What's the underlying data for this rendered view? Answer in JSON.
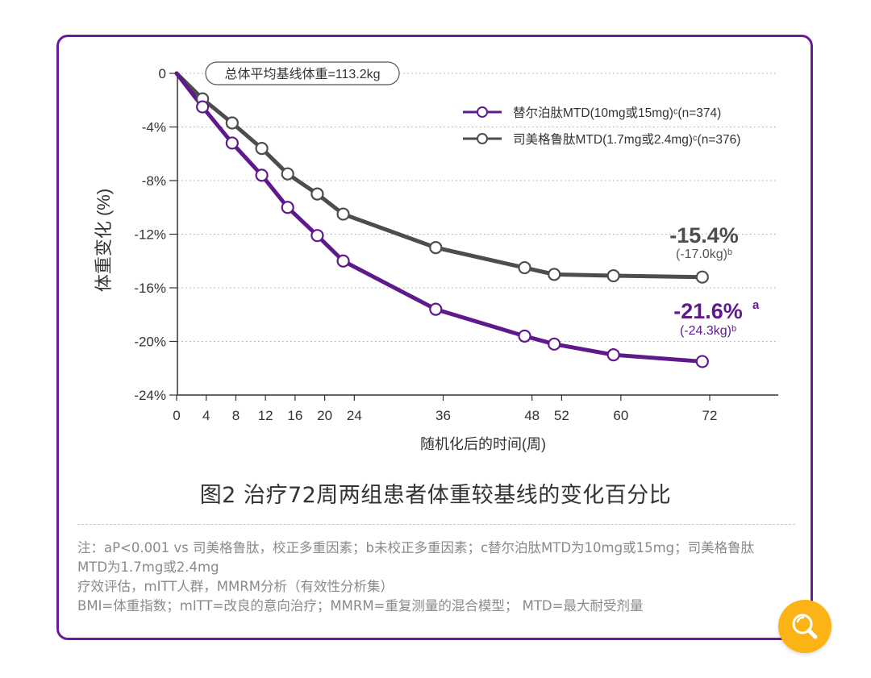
{
  "colors": {
    "border": "#6a1b9a",
    "tirzepatide": "#5e1a8c",
    "semaglutide": "#4d4d4d",
    "search_button": "#fbb316"
  },
  "chart_data": {
    "type": "line",
    "xlabel": "随机化后的时间(周)",
    "ylabel": "体重变化 (%)",
    "x_ticks": [
      0,
      4,
      8,
      12,
      16,
      20,
      24,
      36,
      48,
      52,
      60,
      72
    ],
    "y_ticks": [
      0,
      -4,
      -8,
      -12,
      -16,
      -20,
      -24
    ],
    "y_tick_labels": [
      "0",
      "-4%",
      "-8%",
      "-12%",
      "-16%",
      "-20%",
      "-24%"
    ],
    "xlim": [
      0,
      82
    ],
    "ylim": [
      -24,
      0
    ],
    "grid": "horizontal dotted",
    "legend_position": "top-right",
    "baseline_note": "总体平均基线体重=113.2kg",
    "series": [
      {
        "name": "替尔泊肽MTD(10mg或15mg)ᶜ(n=374)",
        "x": [
          0,
          3.5,
          7.5,
          11.5,
          15,
          19,
          22.5,
          35,
          47,
          51,
          59,
          71
        ],
        "values": [
          0,
          -2.5,
          -5.2,
          -7.6,
          -10.0,
          -12.1,
          -14.0,
          -17.6,
          -19.6,
          -20.2,
          -21.0,
          -21.5
        ]
      },
      {
        "name": "司美格鲁肽MTD(1.7mg或2.4mg)ᶜ(n=376)",
        "x": [
          0,
          3.5,
          7.5,
          11.5,
          15,
          19,
          22.5,
          35,
          47,
          51,
          59,
          71
        ],
        "values": [
          0,
          -1.9,
          -3.7,
          -5.6,
          -7.5,
          -9.0,
          -10.5,
          -13.0,
          -14.5,
          -15.0,
          -15.1,
          -15.2
        ]
      }
    ],
    "annotations": [
      {
        "value": "-15.4%",
        "sup": "",
        "sub_text": "(-17.0kg)ᵇ"
      },
      {
        "value": "-21.6%",
        "sup": "a",
        "sub_text": "(-24.3kg)ᵇ"
      }
    ]
  },
  "caption": "图2 治疗72周两组患者体重较基线的变化百分比",
  "notes": [
    "注：aP<0.001 vs 司美格鲁肽，校正多重因素；b未校正多重因素；c替尔泊肽MTD为10mg或15mg；司美格鲁肽",
    "MTD为1.7mg或2.4mg",
    "疗效评估，mITT人群，MMRM分析（有效性分析集）",
    "BMI=体重指数；mITT=改良的意向治疗；MMRM=重复测量的混合模型； MTD=最大耐受剂量"
  ],
  "search_icon": "search-icon"
}
